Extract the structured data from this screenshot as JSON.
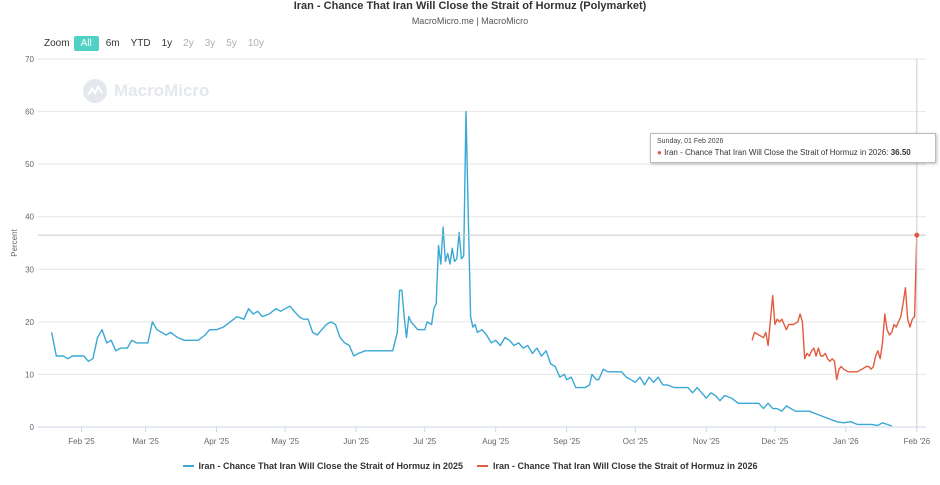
{
  "header": {
    "title": "Iran - Chance That Iran Will Close the Strait of Hormuz (Polymarket)",
    "subtitle": "MacroMicro.me | MacroMicro"
  },
  "zoom": {
    "label": "Zoom",
    "buttons": [
      {
        "label": "All",
        "state": "active"
      },
      {
        "label": "6m",
        "state": "enabled"
      },
      {
        "label": "YTD",
        "state": "enabled"
      },
      {
        "label": "1y",
        "state": "enabled"
      },
      {
        "label": "2y",
        "state": "disabled"
      },
      {
        "label": "3y",
        "state": "disabled"
      },
      {
        "label": "5y",
        "state": "disabled"
      },
      {
        "label": "10y",
        "state": "disabled"
      }
    ]
  },
  "watermark": {
    "text": "MacroMicro",
    "icon": "macromicro-logo-icon"
  },
  "tooltip": {
    "date": "Sunday, 01 Feb 2026",
    "series": "Iran - Chance That Iran Will Close the Strait of Hormuz in 2026",
    "value": "36.50",
    "color": "#e35b3f"
  },
  "chart_data": {
    "type": "line",
    "ylabel": "Percent",
    "ylim": [
      0,
      70
    ],
    "yticks": [
      0,
      10,
      20,
      30,
      40,
      50,
      60,
      70
    ],
    "xlim": [
      "2025-01-13",
      "2026-02-05"
    ],
    "xticks": [
      {
        "label": "Feb '25",
        "date": "2025-02-01"
      },
      {
        "label": "Mar '25",
        "date": "2025-03-01"
      },
      {
        "label": "Apr '25",
        "date": "2025-04-01"
      },
      {
        "label": "May '25",
        "date": "2025-05-01"
      },
      {
        "label": "Jun '25",
        "date": "2025-06-01"
      },
      {
        "label": "Jul '25",
        "date": "2025-07-01"
      },
      {
        "label": "Aug '25",
        "date": "2025-08-01"
      },
      {
        "label": "Sep '25",
        "date": "2025-09-01"
      },
      {
        "label": "Oct '25",
        "date": "2025-10-01"
      },
      {
        "label": "Nov '25",
        "date": "2025-11-01"
      },
      {
        "label": "Dec '25",
        "date": "2025-12-01"
      },
      {
        "label": "Jan '26",
        "date": "2026-01-01"
      },
      {
        "label": "Feb '26",
        "date": "2026-02-01"
      }
    ],
    "grid": true,
    "legend_position": "bottom",
    "crosshair": {
      "date": "2026-02-01",
      "y": 36.5
    },
    "series": [
      {
        "name": "Iran - Chance That Iran Will Close the Strait of Hormuz in 2025",
        "color": "#3aa8d4",
        "points": [
          [
            "2025-01-19",
            18
          ],
          [
            "2025-01-21",
            13.5
          ],
          [
            "2025-01-24",
            13.5
          ],
          [
            "2025-01-26",
            13
          ],
          [
            "2025-01-28",
            13.5
          ],
          [
            "2025-02-02",
            13.5
          ],
          [
            "2025-02-04",
            12.5
          ],
          [
            "2025-02-06",
            13
          ],
          [
            "2025-02-08",
            17
          ],
          [
            "2025-02-10",
            18.5
          ],
          [
            "2025-02-12",
            16
          ],
          [
            "2025-02-14",
            16.5
          ],
          [
            "2025-02-16",
            14.5
          ],
          [
            "2025-02-18",
            15
          ],
          [
            "2025-02-21",
            15
          ],
          [
            "2025-02-23",
            16.5
          ],
          [
            "2025-02-25",
            16
          ],
          [
            "2025-02-27",
            16
          ],
          [
            "2025-03-02",
            16
          ],
          [
            "2025-03-04",
            20
          ],
          [
            "2025-03-06",
            18.5
          ],
          [
            "2025-03-08",
            18
          ],
          [
            "2025-03-10",
            17.5
          ],
          [
            "2025-03-12",
            18
          ],
          [
            "2025-03-15",
            17
          ],
          [
            "2025-03-18",
            16.5
          ],
          [
            "2025-03-21",
            16.5
          ],
          [
            "2025-03-24",
            16.5
          ],
          [
            "2025-03-27",
            17.5
          ],
          [
            "2025-03-29",
            18.5
          ],
          [
            "2025-04-01",
            18.5
          ],
          [
            "2025-04-04",
            19
          ],
          [
            "2025-04-07",
            20
          ],
          [
            "2025-04-10",
            21
          ],
          [
            "2025-04-13",
            20.5
          ],
          [
            "2025-04-15",
            22.5
          ],
          [
            "2025-04-17",
            21.5
          ],
          [
            "2025-04-19",
            22
          ],
          [
            "2025-04-21",
            21
          ],
          [
            "2025-04-24",
            21.5
          ],
          [
            "2025-04-27",
            22.5
          ],
          [
            "2025-04-29",
            22
          ],
          [
            "2025-05-01",
            22.5
          ],
          [
            "2025-05-03",
            23
          ],
          [
            "2025-05-05",
            22
          ],
          [
            "2025-05-07",
            21
          ],
          [
            "2025-05-09",
            20.5
          ],
          [
            "2025-05-11",
            20.5
          ],
          [
            "2025-05-13",
            18
          ],
          [
            "2025-05-15",
            17.5
          ],
          [
            "2025-05-17",
            18.5
          ],
          [
            "2025-05-19",
            19.5
          ],
          [
            "2025-05-21",
            20
          ],
          [
            "2025-05-23",
            19.5
          ],
          [
            "2025-05-25",
            17
          ],
          [
            "2025-05-27",
            16
          ],
          [
            "2025-05-29",
            15.5
          ],
          [
            "2025-05-31",
            13.5
          ],
          [
            "2025-06-02",
            14
          ],
          [
            "2025-06-05",
            14.5
          ],
          [
            "2025-06-08",
            14.5
          ],
          [
            "2025-06-11",
            14.5
          ],
          [
            "2025-06-14",
            14.5
          ],
          [
            "2025-06-17",
            14.5
          ],
          [
            "2025-06-19",
            18
          ],
          [
            "2025-06-20",
            26
          ],
          [
            "2025-06-21",
            26
          ],
          [
            "2025-06-22",
            21
          ],
          [
            "2025-06-23",
            17
          ],
          [
            "2025-06-24",
            21
          ],
          [
            "2025-06-25",
            20
          ],
          [
            "2025-06-26",
            19.5
          ],
          [
            "2025-06-27",
            19
          ],
          [
            "2025-06-28",
            18.5
          ],
          [
            "2025-07-01",
            18.5
          ],
          [
            "2025-07-02",
            20
          ],
          [
            "2025-07-04",
            19.5
          ],
          [
            "2025-07-05",
            22.5
          ],
          [
            "2025-07-06",
            23.5
          ],
          [
            "2025-07-07",
            34.5
          ],
          [
            "2025-07-08",
            31
          ],
          [
            "2025-07-09",
            38
          ],
          [
            "2025-07-10",
            31.5
          ],
          [
            "2025-07-11",
            33
          ],
          [
            "2025-07-12",
            31
          ],
          [
            "2025-07-13",
            34
          ],
          [
            "2025-07-14",
            31.5
          ],
          [
            "2025-07-15",
            32
          ],
          [
            "2025-07-16",
            37
          ],
          [
            "2025-07-17",
            32
          ],
          [
            "2025-07-18",
            32.5
          ],
          [
            "2025-07-19",
            60
          ],
          [
            "2025-07-20",
            40
          ],
          [
            "2025-07-21",
            21
          ],
          [
            "2025-07-22",
            19
          ],
          [
            "2025-07-23",
            19.5
          ],
          [
            "2025-07-24",
            18
          ],
          [
            "2025-07-26",
            18.5
          ],
          [
            "2025-07-28",
            17.5
          ],
          [
            "2025-07-30",
            16
          ],
          [
            "2025-08-01",
            16.5
          ],
          [
            "2025-08-03",
            15.5
          ],
          [
            "2025-08-05",
            17
          ],
          [
            "2025-08-07",
            16.5
          ],
          [
            "2025-08-09",
            15.5
          ],
          [
            "2025-08-11",
            16
          ],
          [
            "2025-08-13",
            15
          ],
          [
            "2025-08-15",
            15.5
          ],
          [
            "2025-08-17",
            14
          ],
          [
            "2025-08-19",
            15
          ],
          [
            "2025-08-21",
            13.5
          ],
          [
            "2025-08-23",
            14.5
          ],
          [
            "2025-08-25",
            12
          ],
          [
            "2025-08-27",
            11.5
          ],
          [
            "2025-08-29",
            9.5
          ],
          [
            "2025-08-31",
            10
          ],
          [
            "2025-09-01",
            9
          ],
          [
            "2025-09-03",
            9.5
          ],
          [
            "2025-09-05",
            7.5
          ],
          [
            "2025-09-07",
            7.5
          ],
          [
            "2025-09-09",
            7.5
          ],
          [
            "2025-09-11",
            8
          ],
          [
            "2025-09-12",
            10
          ],
          [
            "2025-09-14",
            9
          ],
          [
            "2025-09-15",
            9
          ],
          [
            "2025-09-17",
            11
          ],
          [
            "2025-09-19",
            10.5
          ],
          [
            "2025-09-21",
            10.5
          ],
          [
            "2025-09-23",
            10.5
          ],
          [
            "2025-09-25",
            10.5
          ],
          [
            "2025-09-27",
            9.5
          ],
          [
            "2025-09-29",
            9
          ],
          [
            "2025-10-01",
            8.5
          ],
          [
            "2025-10-03",
            9.5
          ],
          [
            "2025-10-05",
            8
          ],
          [
            "2025-10-07",
            9.5
          ],
          [
            "2025-10-09",
            8.5
          ],
          [
            "2025-10-11",
            9.5
          ],
          [
            "2025-10-13",
            8
          ],
          [
            "2025-10-15",
            8
          ],
          [
            "2025-10-18",
            7.5
          ],
          [
            "2025-10-21",
            7.5
          ],
          [
            "2025-10-24",
            7.5
          ],
          [
            "2025-10-26",
            6.5
          ],
          [
            "2025-10-28",
            7.5
          ],
          [
            "2025-10-30",
            6.5
          ],
          [
            "2025-11-01",
            5.5
          ],
          [
            "2025-11-03",
            6.5
          ],
          [
            "2025-11-05",
            6
          ],
          [
            "2025-11-07",
            5
          ],
          [
            "2025-11-09",
            6
          ],
          [
            "2025-11-12",
            5.5
          ],
          [
            "2025-11-15",
            4.5
          ],
          [
            "2025-11-18",
            4.5
          ],
          [
            "2025-11-21",
            4.5
          ],
          [
            "2025-11-24",
            4.5
          ],
          [
            "2025-11-26",
            3.5
          ],
          [
            "2025-11-28",
            4.5
          ],
          [
            "2025-11-30",
            3.5
          ],
          [
            "2025-12-02",
            3.5
          ],
          [
            "2025-12-04",
            3
          ],
          [
            "2025-12-06",
            4
          ],
          [
            "2025-12-08",
            3.5
          ],
          [
            "2025-12-10",
            3
          ],
          [
            "2025-12-13",
            3
          ],
          [
            "2025-12-16",
            3
          ],
          [
            "2025-12-19",
            2.5
          ],
          [
            "2025-12-22",
            2
          ],
          [
            "2025-12-25",
            1.5
          ],
          [
            "2025-12-28",
            1
          ],
          [
            "2025-12-31",
            0.8
          ],
          [
            "2026-01-03",
            1
          ],
          [
            "2026-01-06",
            0.5
          ],
          [
            "2026-01-09",
            0.5
          ],
          [
            "2026-01-12",
            0.5
          ],
          [
            "2026-01-15",
            0.3
          ],
          [
            "2026-01-17",
            0.8
          ],
          [
            "2026-01-19",
            0.5
          ],
          [
            "2026-01-21",
            0.2
          ]
        ]
      },
      {
        "name": "Iran - Chance That Iran Will Close the Strait of Hormuz in 2026",
        "color": "#e35b3f",
        "points": [
          [
            "2025-11-21",
            16.5
          ],
          [
            "2025-11-22",
            18
          ],
          [
            "2025-11-24",
            17.5
          ],
          [
            "2025-11-26",
            17
          ],
          [
            "2025-11-27",
            18
          ],
          [
            "2025-11-28",
            15.5
          ],
          [
            "2025-11-30",
            25
          ],
          [
            "2025-12-01",
            19.5
          ],
          [
            "2025-12-02",
            20.5
          ],
          [
            "2025-12-03",
            20
          ],
          [
            "2025-12-04",
            20.5
          ],
          [
            "2025-12-06",
            18.5
          ],
          [
            "2025-12-07",
            19.5
          ],
          [
            "2025-12-09",
            19.5
          ],
          [
            "2025-12-11",
            20
          ],
          [
            "2025-12-12",
            21.5
          ],
          [
            "2025-12-13",
            20
          ],
          [
            "2025-12-14",
            13
          ],
          [
            "2025-12-15",
            14
          ],
          [
            "2025-12-16",
            13.5
          ],
          [
            "2025-12-17",
            14.5
          ],
          [
            "2025-12-18",
            15
          ],
          [
            "2025-12-19",
            13.5
          ],
          [
            "2025-12-20",
            15
          ],
          [
            "2025-12-21",
            13.5
          ],
          [
            "2025-12-22",
            13.5
          ],
          [
            "2025-12-23",
            14
          ],
          [
            "2025-12-24",
            13
          ],
          [
            "2025-12-25",
            12.5
          ],
          [
            "2025-12-26",
            13
          ],
          [
            "2025-12-27",
            12.5
          ],
          [
            "2025-12-28",
            9
          ],
          [
            "2025-12-29",
            11
          ],
          [
            "2025-12-30",
            11.5
          ],
          [
            "2025-12-31",
            11
          ],
          [
            "2026-01-02",
            10.5
          ],
          [
            "2026-01-04",
            10.5
          ],
          [
            "2026-01-06",
            10.5
          ],
          [
            "2026-01-08",
            11
          ],
          [
            "2026-01-10",
            11.5
          ],
          [
            "2026-01-11",
            11.5
          ],
          [
            "2026-01-12",
            11
          ],
          [
            "2026-01-13",
            11.5
          ],
          [
            "2026-01-14",
            13.5
          ],
          [
            "2026-01-15",
            14.5
          ],
          [
            "2026-01-16",
            13
          ],
          [
            "2026-01-17",
            16
          ],
          [
            "2026-01-18",
            21.5
          ],
          [
            "2026-01-19",
            18.5
          ],
          [
            "2026-01-20",
            17.5
          ],
          [
            "2026-01-21",
            18
          ],
          [
            "2026-01-22",
            19.5
          ],
          [
            "2026-01-23",
            19
          ],
          [
            "2026-01-24",
            20
          ],
          [
            "2026-01-25",
            21
          ],
          [
            "2026-01-26",
            23.5
          ],
          [
            "2026-01-27",
            26.5
          ],
          [
            "2026-01-28",
            20.5
          ],
          [
            "2026-01-29",
            19
          ],
          [
            "2026-01-30",
            20.5
          ],
          [
            "2026-01-31",
            21
          ],
          [
            "2026-02-01",
            36.5
          ]
        ]
      }
    ]
  }
}
